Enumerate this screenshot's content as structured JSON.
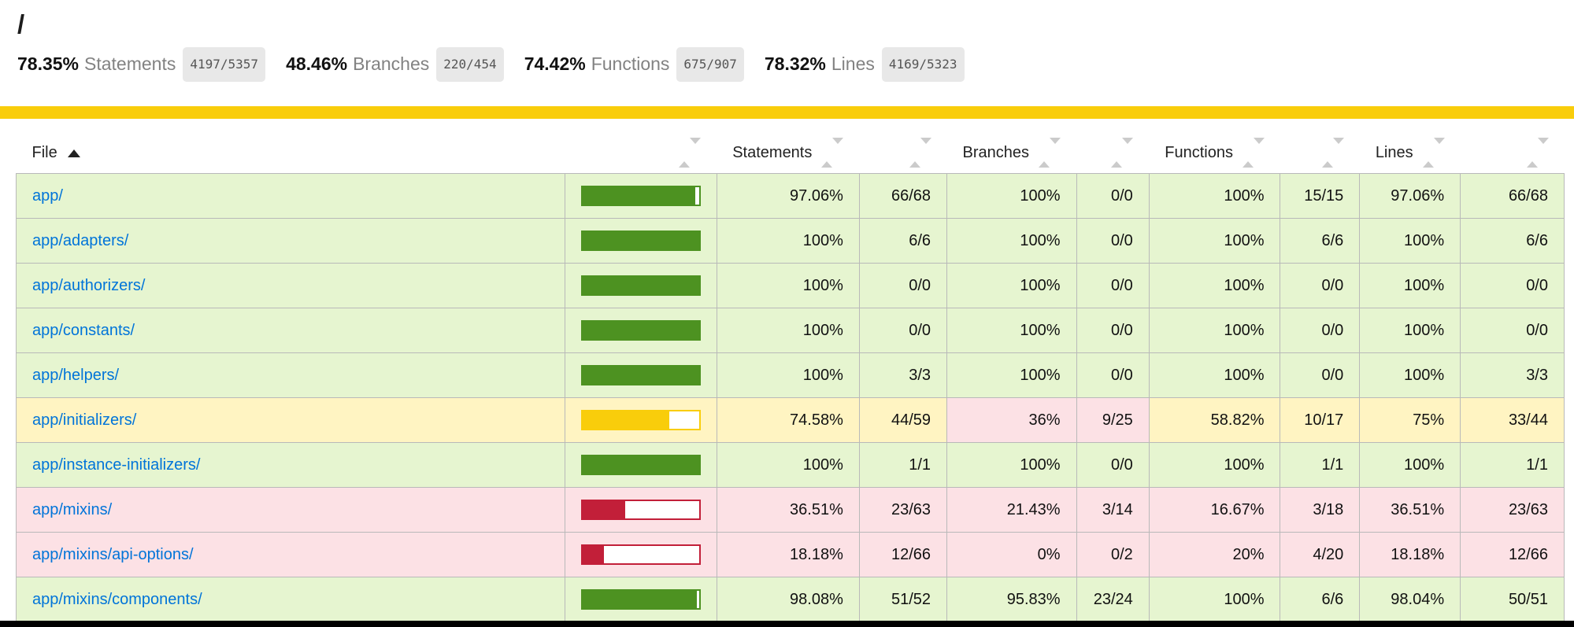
{
  "header": {
    "title": "/",
    "summary": [
      {
        "pct": "78.35%",
        "label": "Statements",
        "fraction": "4197/5357"
      },
      {
        "pct": "48.46%",
        "label": "Branches",
        "fraction": "220/454"
      },
      {
        "pct": "74.42%",
        "label": "Functions",
        "fraction": "675/907"
      },
      {
        "pct": "78.32%",
        "label": "Lines",
        "fraction": "4169/5323"
      }
    ],
    "status_level": "medium"
  },
  "table": {
    "headers": {
      "file": "File",
      "statements": "Statements",
      "branches": "Branches",
      "functions": "Functions",
      "lines": "Lines"
    },
    "sort": {
      "column": "File",
      "direction": "ascending"
    },
    "rows": [
      {
        "file": "app/",
        "level": "high",
        "bar_pct": 97.06,
        "metrics": [
          {
            "pct": "97.06%",
            "fraction": "66/68",
            "level": "high"
          },
          {
            "pct": "100%",
            "fraction": "0/0",
            "level": "high"
          },
          {
            "pct": "100%",
            "fraction": "15/15",
            "level": "high"
          },
          {
            "pct": "97.06%",
            "fraction": "66/68",
            "level": "high"
          }
        ]
      },
      {
        "file": "app/adapters/",
        "level": "high",
        "bar_pct": 100,
        "metrics": [
          {
            "pct": "100%",
            "fraction": "6/6",
            "level": "high"
          },
          {
            "pct": "100%",
            "fraction": "0/0",
            "level": "high"
          },
          {
            "pct": "100%",
            "fraction": "6/6",
            "level": "high"
          },
          {
            "pct": "100%",
            "fraction": "6/6",
            "level": "high"
          }
        ]
      },
      {
        "file": "app/authorizers/",
        "level": "high",
        "bar_pct": 100,
        "metrics": [
          {
            "pct": "100%",
            "fraction": "0/0",
            "level": "high"
          },
          {
            "pct": "100%",
            "fraction": "0/0",
            "level": "high"
          },
          {
            "pct": "100%",
            "fraction": "0/0",
            "level": "high"
          },
          {
            "pct": "100%",
            "fraction": "0/0",
            "level": "high"
          }
        ]
      },
      {
        "file": "app/constants/",
        "level": "high",
        "bar_pct": 100,
        "metrics": [
          {
            "pct": "100%",
            "fraction": "0/0",
            "level": "high"
          },
          {
            "pct": "100%",
            "fraction": "0/0",
            "level": "high"
          },
          {
            "pct": "100%",
            "fraction": "0/0",
            "level": "high"
          },
          {
            "pct": "100%",
            "fraction": "0/0",
            "level": "high"
          }
        ]
      },
      {
        "file": "app/helpers/",
        "level": "high",
        "bar_pct": 100,
        "metrics": [
          {
            "pct": "100%",
            "fraction": "3/3",
            "level": "high"
          },
          {
            "pct": "100%",
            "fraction": "0/0",
            "level": "high"
          },
          {
            "pct": "100%",
            "fraction": "0/0",
            "level": "high"
          },
          {
            "pct": "100%",
            "fraction": "3/3",
            "level": "high"
          }
        ]
      },
      {
        "file": "app/initializers/",
        "level": "medium",
        "bar_pct": 74.58,
        "metrics": [
          {
            "pct": "74.58%",
            "fraction": "44/59",
            "level": "medium"
          },
          {
            "pct": "36%",
            "fraction": "9/25",
            "level": "low"
          },
          {
            "pct": "58.82%",
            "fraction": "10/17",
            "level": "medium"
          },
          {
            "pct": "75%",
            "fraction": "33/44",
            "level": "medium"
          }
        ]
      },
      {
        "file": "app/instance-initializers/",
        "level": "high",
        "bar_pct": 100,
        "metrics": [
          {
            "pct": "100%",
            "fraction": "1/1",
            "level": "high"
          },
          {
            "pct": "100%",
            "fraction": "0/0",
            "level": "high"
          },
          {
            "pct": "100%",
            "fraction": "1/1",
            "level": "high"
          },
          {
            "pct": "100%",
            "fraction": "1/1",
            "level": "high"
          }
        ]
      },
      {
        "file": "app/mixins/",
        "level": "low",
        "bar_pct": 36.51,
        "metrics": [
          {
            "pct": "36.51%",
            "fraction": "23/63",
            "level": "low"
          },
          {
            "pct": "21.43%",
            "fraction": "3/14",
            "level": "low"
          },
          {
            "pct": "16.67%",
            "fraction": "3/18",
            "level": "low"
          },
          {
            "pct": "36.51%",
            "fraction": "23/63",
            "level": "low"
          }
        ]
      },
      {
        "file": "app/mixins/api-options/",
        "level": "low",
        "bar_pct": 18.18,
        "metrics": [
          {
            "pct": "18.18%",
            "fraction": "12/66",
            "level": "low"
          },
          {
            "pct": "0%",
            "fraction": "0/2",
            "level": "low"
          },
          {
            "pct": "20%",
            "fraction": "4/20",
            "level": "low"
          },
          {
            "pct": "18.18%",
            "fraction": "12/66",
            "level": "low"
          }
        ]
      },
      {
        "file": "app/mixins/components/",
        "level": "high",
        "bar_pct": 98.08,
        "metrics": [
          {
            "pct": "98.08%",
            "fraction": "51/52",
            "level": "high"
          },
          {
            "pct": "95.83%",
            "fraction": "23/24",
            "level": "high"
          },
          {
            "pct": "100%",
            "fraction": "6/6",
            "level": "high"
          },
          {
            "pct": "98.04%",
            "fraction": "50/51",
            "level": "high"
          }
        ]
      }
    ]
  },
  "icons": {
    "sort_ascending": "black-triangle-up",
    "sortable": "gray-triangles-up-down"
  },
  "colors": {
    "high-fill": "#4D9221",
    "high-bg": "#E6F5D0",
    "medium-fill": "#F9CD0B",
    "medium-bg": "#FFF4C2",
    "low-fill": "#C21F39",
    "low-bg": "#FCE1E5",
    "link": "#0074D9",
    "border": "#b9b9b9"
  }
}
